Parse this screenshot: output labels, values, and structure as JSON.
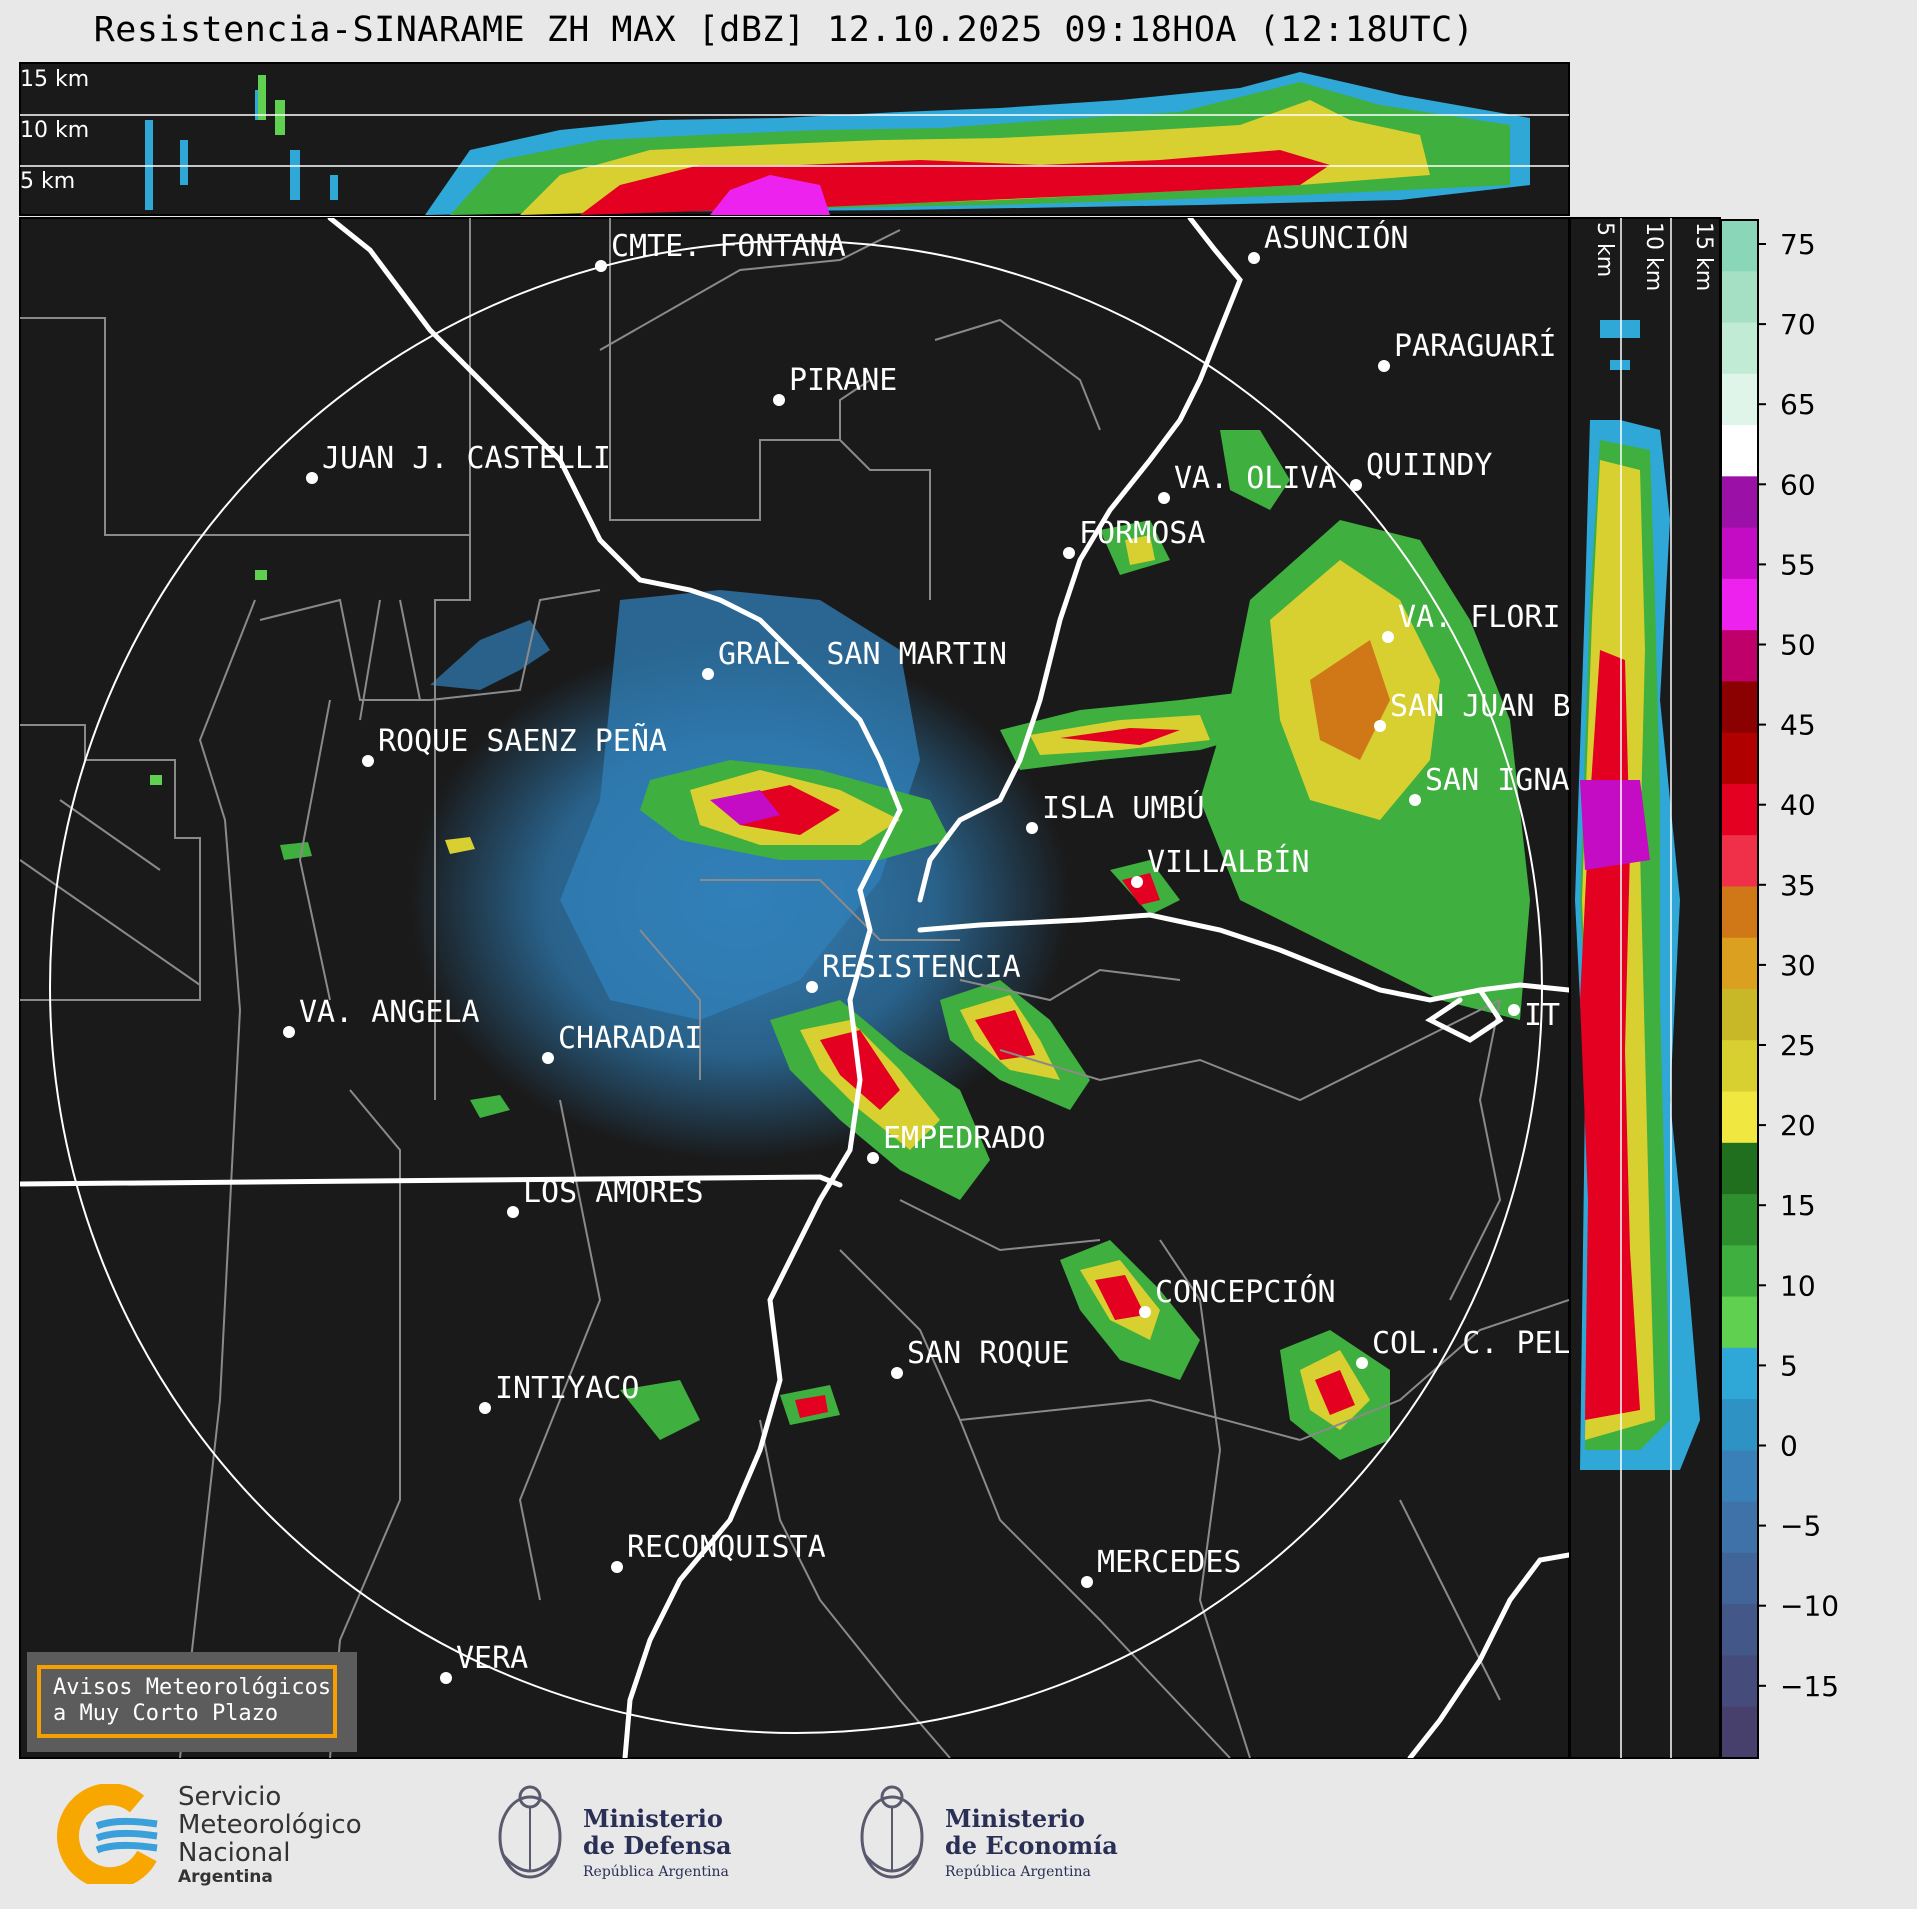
{
  "title": "Resistencia-SINARAME ZH MAX [dBZ] 12.10.2025 09:18HOA (12:18UTC)",
  "height_labels": {
    "top": [
      "15 km",
      "10 km",
      "5 km"
    ],
    "side": [
      "5 km",
      "10 km",
      "15 km"
    ]
  },
  "cities": [
    {
      "name": "CMTE. FONTANA"
    },
    {
      "name": "ASUNCIÓN"
    },
    {
      "name": "PIRANE"
    },
    {
      "name": "PARAGUARÍ"
    },
    {
      "name": "JUAN J. CASTELLI"
    },
    {
      "name": "VA. OLIVA"
    },
    {
      "name": "QUIINDY"
    },
    {
      "name": "FORMOSA"
    },
    {
      "name": "VA. FLORI"
    },
    {
      "name": "GRAL. SAN MARTIN"
    },
    {
      "name": "SAN JUAN B"
    },
    {
      "name": "ROQUE SAENZ PEÑA"
    },
    {
      "name": "SAN IGNA"
    },
    {
      "name": "ISLA UMBÚ"
    },
    {
      "name": "VILLALBÍN"
    },
    {
      "name": "RESISTENCIA"
    },
    {
      "name": "VA. ANGELA"
    },
    {
      "name": "CHARADAI"
    },
    {
      "name": "IT"
    },
    {
      "name": "EMPEDRADO"
    },
    {
      "name": "LOS AMORES"
    },
    {
      "name": "CONCEPCIÓN"
    },
    {
      "name": "SAN ROQUE"
    },
    {
      "name": "COL. C. PEL"
    },
    {
      "name": "INTIYACO"
    },
    {
      "name": "RECONQUISTA"
    },
    {
      "name": "MERCEDES"
    },
    {
      "name": "VERA"
    }
  ],
  "colorbar": {
    "ticks": [
      "75",
      "70",
      "65",
      "60",
      "55",
      "50",
      "45",
      "40",
      "35",
      "30",
      "25",
      "20",
      "15",
      "10",
      "5",
      "0",
      "−5",
      "−10",
      "−15"
    ],
    "bands": [
      "#8ad6b8",
      "#a5e0c4",
      "#c2ebd6",
      "#e0f5ea",
      "#ffffff",
      "#9b10a6",
      "#c40cc4",
      "#ee22ee",
      "#c0006a",
      "#8b0000",
      "#b00000",
      "#e30020",
      "#f03048",
      "#d07818",
      "#dca020",
      "#c8b828",
      "#d8d030",
      "#f0e840",
      "#1f6f1f",
      "#2e8f2e",
      "#3faf3f",
      "#5fd04f",
      "#2fa8d8",
      "#2e93c4",
      "#3a80b8",
      "#3f72a8",
      "#416598",
      "#435888",
      "#454b7a",
      "#473f6c"
    ]
  },
  "aviso": "Avisos Meteorológicos\na Muy Corto Plazo",
  "logos": {
    "smn": [
      "Servicio",
      "Meteorológico",
      "Nacional",
      "Argentina"
    ],
    "defensa": [
      "Ministerio",
      "de Defensa",
      "República Argentina"
    ],
    "economia": [
      "Ministerio",
      "de Economía",
      "República Argentina"
    ]
  }
}
